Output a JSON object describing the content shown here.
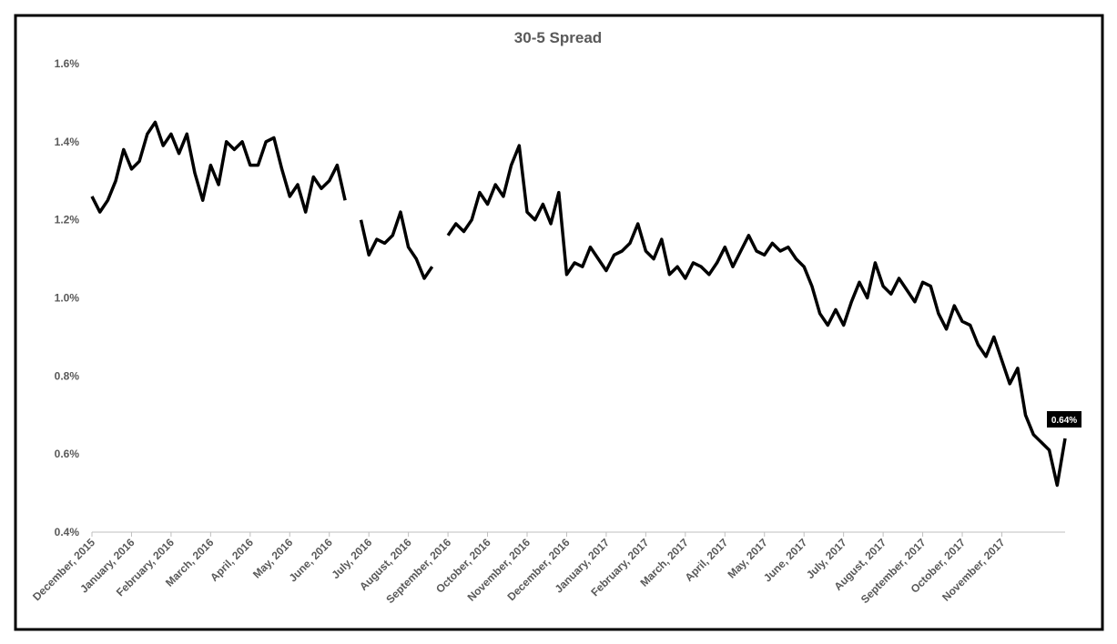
{
  "chart_data": {
    "type": "line",
    "title": "30-5 Spread",
    "categories": [
      "December, 2015",
      null,
      null,
      null,
      null,
      "January, 2016",
      null,
      null,
      null,
      null,
      "February, 2016",
      null,
      null,
      null,
      null,
      "March, 2016",
      null,
      null,
      null,
      null,
      "April, 2016",
      null,
      null,
      null,
      null,
      "May, 2016",
      null,
      null,
      null,
      null,
      "June, 2016",
      null,
      null,
      null,
      null,
      "July, 2016",
      null,
      null,
      null,
      null,
      "August, 2016",
      null,
      null,
      null,
      null,
      "September, 2016",
      null,
      null,
      null,
      null,
      "October, 2016",
      null,
      null,
      null,
      null,
      "November, 2016",
      null,
      null,
      null,
      null,
      "December, 2016",
      null,
      null,
      null,
      null,
      "January, 2017",
      null,
      null,
      null,
      null,
      "February, 2017",
      null,
      null,
      null,
      null,
      "March, 2017",
      null,
      null,
      null,
      null,
      "April, 2017",
      null,
      null,
      null,
      null,
      "May, 2017",
      null,
      null,
      null,
      null,
      "June, 2017",
      null,
      null,
      null,
      null,
      "July, 2017",
      null,
      null,
      null,
      null,
      "August, 2017",
      null,
      null,
      null,
      null,
      "September, 2017",
      null,
      null,
      null,
      null,
      "October, 2017",
      null,
      null,
      null,
      null,
      "November, 2017",
      null,
      null,
      null,
      null,
      null,
      null,
      null,
      null
    ],
    "series": [
      {
        "color": "#000000",
        "values": [
          1.26,
          1.22,
          1.25,
          1.3,
          1.38,
          1.33,
          1.35,
          1.42,
          1.45,
          1.39,
          1.42,
          1.37,
          1.42,
          1.32,
          1.25,
          1.34,
          1.29,
          1.4,
          1.38,
          1.4,
          1.34,
          1.34,
          1.4,
          1.41,
          1.33,
          1.26,
          1.29,
          1.22,
          1.31,
          1.28,
          1.3,
          1.34,
          1.25,
          null,
          1.2,
          1.11,
          1.15,
          1.14,
          1.16,
          1.22,
          1.13,
          1.1,
          1.05,
          1.08,
          null,
          1.16,
          1.19,
          1.17,
          1.2,
          1.27,
          1.24,
          1.29,
          1.26,
          1.34,
          1.39,
          1.22,
          1.2,
          1.24,
          1.19,
          1.27,
          1.06,
          1.09,
          1.08,
          1.13,
          1.1,
          1.07,
          1.11,
          1.12,
          1.14,
          1.19,
          1.12,
          1.1,
          1.15,
          1.06,
          1.08,
          1.05,
          1.09,
          1.08,
          1.06,
          1.09,
          1.13,
          1.08,
          1.12,
          1.16,
          1.12,
          1.11,
          1.14,
          1.12,
          1.13,
          1.1,
          1.08,
          1.03,
          0.96,
          0.93,
          0.97,
          0.93,
          0.99,
          1.04,
          1.0,
          1.09,
          1.03,
          1.01,
          1.05,
          1.02,
          0.99,
          1.04,
          1.03,
          0.96,
          0.92,
          0.98,
          0.94,
          0.93,
          0.88,
          0.85,
          0.9,
          0.84,
          0.78,
          0.82,
          0.7,
          0.65,
          0.63,
          0.61,
          0.52,
          0.64
        ],
        "value_labels": [
          null,
          null,
          null,
          null,
          null,
          null,
          null,
          null,
          null,
          null,
          null,
          null,
          null,
          null,
          null,
          null,
          null,
          null,
          null,
          null,
          null,
          null,
          null,
          null,
          null,
          null,
          null,
          null,
          null,
          null,
          null,
          null,
          null,
          null,
          null,
          null,
          null,
          null,
          null,
          null,
          null,
          null,
          null,
          null,
          null,
          null,
          null,
          null,
          null,
          null,
          null,
          null,
          null,
          null,
          null,
          null,
          null,
          null,
          null,
          null,
          null,
          null,
          null,
          null,
          null,
          null,
          null,
          null,
          null,
          null,
          null,
          null,
          null,
          null,
          null,
          null,
          null,
          null,
          null,
          null,
          null,
          null,
          null,
          null,
          null,
          null,
          null,
          null,
          null,
          null,
          null,
          null,
          null,
          null,
          null,
          null,
          null,
          null,
          null,
          null,
          null,
          null,
          null,
          null,
          null,
          null,
          null,
          null,
          null,
          null,
          null,
          null,
          null,
          null,
          null,
          null,
          null,
          null,
          null,
          null,
          null,
          null,
          null,
          "0.64%"
        ]
      }
    ],
    "ylim": [
      0.4,
      1.6
    ],
    "yticks": [
      {
        "value": 0.4,
        "label": "0.4%"
      },
      {
        "value": 0.6,
        "label": "0.6%"
      },
      {
        "value": 0.8,
        "label": "0.8%"
      },
      {
        "value": 1.0,
        "label": "1.0%"
      },
      {
        "value": 1.2,
        "label": "1.2%"
      },
      {
        "value": 1.4,
        "label": "1.4%"
      },
      {
        "value": 1.6,
        "label": "1.6%"
      }
    ],
    "grid": false
  }
}
